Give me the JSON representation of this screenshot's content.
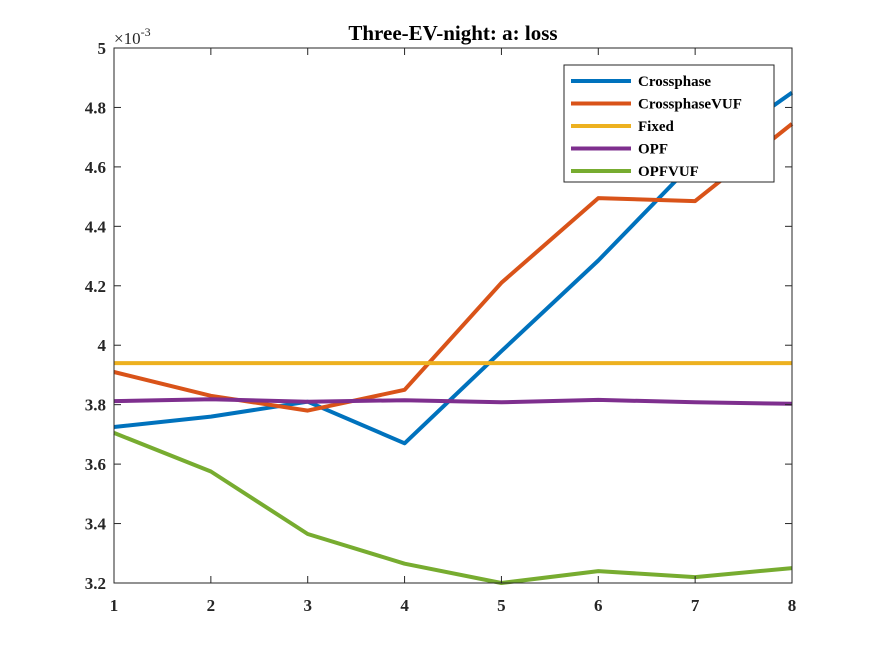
{
  "chart_data": {
    "type": "line",
    "title": "Three-EV-night: a: loss",
    "xlabel": "",
    "ylabel": "",
    "y_multiplier": "×10",
    "y_multiplier_exp": "-3",
    "x": [
      1,
      2,
      3,
      4,
      5,
      6,
      7,
      8
    ],
    "xlim": [
      1,
      8
    ],
    "ylim": [
      3.2,
      5.0
    ],
    "x_ticks": [
      "1",
      "2",
      "3",
      "4",
      "5",
      "6",
      "7",
      "8"
    ],
    "y_ticks": [
      "3.2",
      "3.4",
      "3.6",
      "3.8",
      "4",
      "4.2",
      "4.4",
      "4.6",
      "4.8",
      "5"
    ],
    "grid": false,
    "legend_position": "top-right",
    "series": [
      {
        "name": "Crossphase",
        "color": "#0072BD",
        "values": [
          3.725,
          3.76,
          3.81,
          3.67,
          3.98,
          4.285,
          4.62,
          4.85
        ]
      },
      {
        "name": "CrossphaseVUF",
        "color": "#D95319",
        "values": [
          3.91,
          3.83,
          3.78,
          3.85,
          4.21,
          4.495,
          4.485,
          4.745
        ]
      },
      {
        "name": "Fixed",
        "color": "#EDB120",
        "values": [
          3.94,
          3.94,
          3.94,
          3.94,
          3.94,
          3.94,
          3.94,
          3.94
        ]
      },
      {
        "name": "OPF",
        "color": "#7E2F8E",
        "values": [
          3.812,
          3.818,
          3.81,
          3.815,
          3.808,
          3.816,
          3.808,
          3.803
        ]
      },
      {
        "name": "OPFVUF",
        "color": "#77AC30",
        "values": [
          3.705,
          3.575,
          3.365,
          3.265,
          3.2,
          3.24,
          3.22,
          3.25
        ]
      }
    ]
  }
}
